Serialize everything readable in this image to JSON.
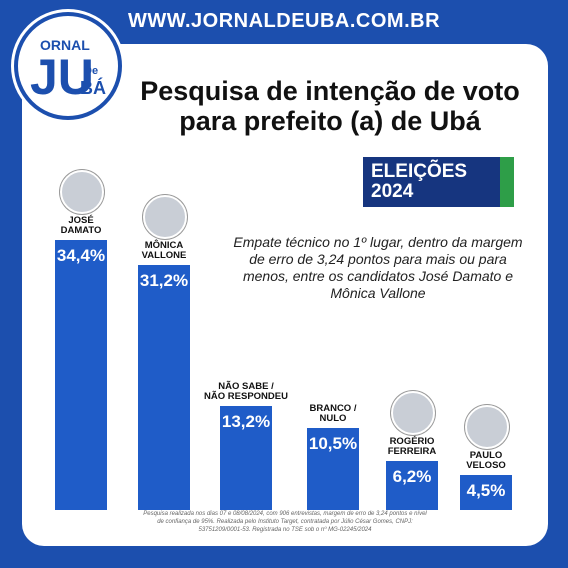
{
  "chart_data": {
    "type": "bar",
    "site": "WWW.JORNALDEUBA.COM.BR",
    "title": "Pesquisa de intenção de voto\npara prefeito (a) de Ubá",
    "badge": "ELEIÇÕES 2024",
    "annotation": "Empate técnico no 1º lugar, dentro da margem de erro de 3,24 pontos para mais ou para menos, entre os candidatos José Damato e Mônica Vallone",
    "categories": [
      "JOSÉ\nDAMATO",
      "MÔNICA\nVALLONE",
      "NÃO SABE /\nNÃO RESPONDEU",
      "BRANCO /\nNULO",
      "ROGÉRIO\nFERREIRA",
      "PAULO\nVELOSO"
    ],
    "values": [
      34.4,
      31.2,
      13.2,
      10.5,
      6.2,
      4.5
    ],
    "value_labels": [
      "34,4%",
      "31,2%",
      "13,2%",
      "10,5%",
      "6,2%",
      "4,5%"
    ],
    "color": "#1f5cc8",
    "footnote": "Pesquisa realizada nos dias 07 e 08/08/2024, com 906 entrevistas, margem de erro de 3,24 pontos e nível de confiança de 95%. Realizada pelo Instituto Target, contratada por Júlio César Gomes, CNPJ: 53751209/0001-53. Registrada no TSE sob o nº MG-02245/2024"
  }
}
